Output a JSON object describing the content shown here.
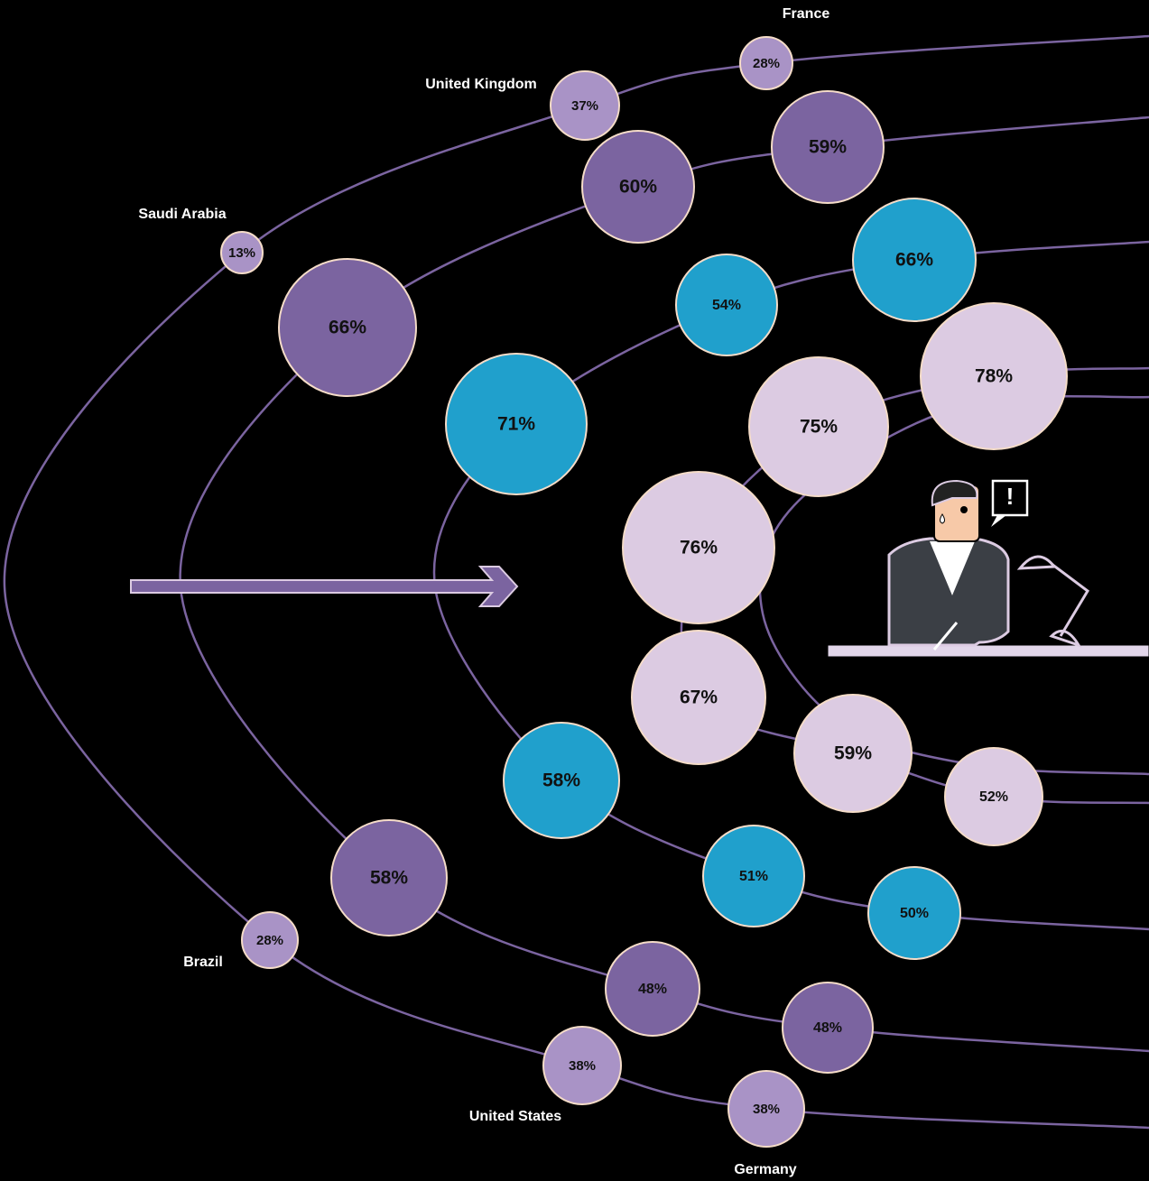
{
  "countries": [
    "Saudi Arabia",
    "United Kingdom",
    "France",
    "Brazil",
    "United States",
    "Germany"
  ],
  "rings": [
    {
      "color": "#a993c6",
      "values": [
        13,
        37,
        28,
        28,
        38,
        38
      ],
      "labels": [
        "13%",
        "37%",
        "28%",
        "28%",
        "38%",
        "38%"
      ]
    },
    {
      "color": "#7b64a0",
      "values": [
        66,
        60,
        59,
        58,
        48,
        48
      ],
      "labels": [
        "66%",
        "60%",
        "59%",
        "58%",
        "48%",
        "48%"
      ]
    },
    {
      "color": "#20a0cc",
      "values": [
        71,
        54,
        66,
        58,
        51,
        50
      ],
      "labels": [
        "71%",
        "54%",
        "66%",
        "58%",
        "51%",
        "50%"
      ]
    },
    {
      "color": "#dccbe2",
      "values": [
        76,
        75,
        78,
        67,
        59,
        52
      ],
      "labels": [
        "76%",
        "75%",
        "78%",
        "67%",
        "59%",
        "52%"
      ]
    }
  ]
}
